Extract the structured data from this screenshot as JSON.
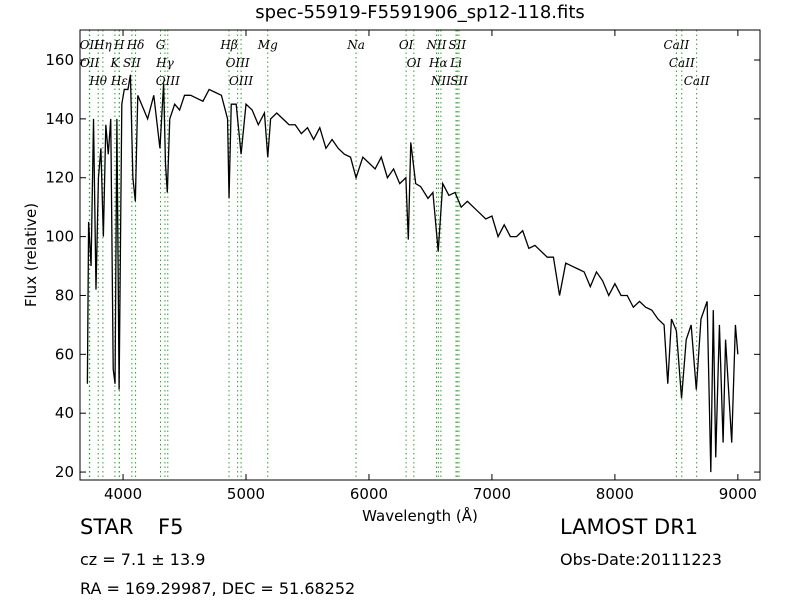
{
  "chart_data": {
    "type": "line",
    "title": "spec-55919-F5591906_sp12-118.fits",
    "x_label": "Wavelength (Å)",
    "y_label": "Flux (relative)",
    "xlim": [
      3650,
      9180
    ],
    "ylim": [
      17.3,
      170.2
    ],
    "xticks": [
      4000,
      5000,
      6000,
      7000,
      8000,
      9000
    ],
    "yticks": [
      20,
      40,
      60,
      80,
      100,
      120,
      140,
      160
    ],
    "line_color": "#000000",
    "marker_color": "#2ca02c",
    "x": [
      3710,
      3720,
      3740,
      3760,
      3780,
      3800,
      3820,
      3840,
      3860,
      3880,
      3900,
      3920,
      3935,
      3950,
      3968,
      3990,
      4010,
      4040,
      4060,
      4080,
      4100,
      4120,
      4150,
      4200,
      4250,
      4300,
      4330,
      4345,
      4360,
      4380,
      4420,
      4460,
      4500,
      4550,
      4600,
      4650,
      4700,
      4750,
      4800,
      4850,
      4862,
      4880,
      4920,
      4960,
      5000,
      5050,
      5100,
      5150,
      5177,
      5200,
      5250,
      5300,
      5350,
      5400,
      5450,
      5500,
      5550,
      5600,
      5650,
      5700,
      5750,
      5800,
      5850,
      5895,
      5950,
      6000,
      6050,
      6100,
      6150,
      6200,
      6250,
      6300,
      6320,
      6340,
      6380,
      6420,
      6480,
      6520,
      6563,
      6600,
      6650,
      6700,
      6750,
      6800,
      6850,
      6900,
      6950,
      7000,
      7050,
      7100,
      7150,
      7200,
      7250,
      7300,
      7350,
      7400,
      7450,
      7500,
      7550,
      7600,
      7650,
      7700,
      7750,
      7800,
      7850,
      7900,
      7950,
      8000,
      8050,
      8100,
      8150,
      8200,
      8250,
      8300,
      8350,
      8400,
      8430,
      8460,
      8500,
      8542,
      8580,
      8620,
      8662,
      8700,
      8750,
      8780,
      8800,
      8820,
      8850,
      8880,
      8900,
      8950,
      8980,
      9000
    ],
    "values": [
      50,
      105,
      90,
      140,
      82,
      120,
      130,
      100,
      138,
      128,
      140,
      55,
      50,
      140,
      48,
      145,
      150,
      150,
      155,
      120,
      112,
      148,
      145,
      140,
      148,
      130,
      152,
      125,
      115,
      140,
      145,
      143,
      148,
      148,
      147,
      146,
      150,
      149,
      148,
      140,
      113,
      145,
      145,
      128,
      145,
      143,
      138,
      142,
      127,
      140,
      142,
      140,
      138,
      138,
      135,
      137,
      133,
      137,
      130,
      133,
      130,
      128,
      127,
      120,
      127,
      125,
      123,
      127,
      120,
      123,
      118,
      120,
      99,
      132,
      118,
      117,
      113,
      115,
      95,
      118,
      114,
      115,
      110,
      112,
      110,
      108,
      106,
      107,
      100,
      104,
      100,
      100,
      102,
      96,
      97,
      95,
      93,
      93,
      80,
      91,
      90,
      89,
      88,
      83,
      88,
      85,
      80,
      84,
      80,
      80,
      76,
      78,
      76,
      75,
      72,
      70,
      50,
      72,
      68,
      45,
      65,
      70,
      48,
      72,
      78,
      20,
      75,
      25,
      70,
      30,
      65,
      30,
      70,
      60
    ],
    "spectral_lines": [
      {
        "label": "OII",
        "wavelength": 3726
      },
      {
        "label": "OII",
        "wavelength": 3729
      },
      {
        "label": "Hθ",
        "wavelength": 3798
      },
      {
        "label": "Hη",
        "wavelength": 3836
      },
      {
        "label": "K",
        "wavelength": 3934
      },
      {
        "label": "H",
        "wavelength": 3969
      },
      {
        "label": "Hε",
        "wavelength": 3970
      },
      {
        "label": "SII",
        "wavelength": 4072
      },
      {
        "label": "Hδ",
        "wavelength": 4102
      },
      {
        "label": "G",
        "wavelength": 4305
      },
      {
        "label": "Hγ",
        "wavelength": 4341
      },
      {
        "label": "OIII",
        "wavelength": 4364
      },
      {
        "label": "Hβ",
        "wavelength": 4862
      },
      {
        "label": "OIII",
        "wavelength": 4932
      },
      {
        "label": "OIII",
        "wavelength": 4960
      },
      {
        "label": "Mg",
        "wavelength": 5177
      },
      {
        "label": "Na",
        "wavelength": 5895
      },
      {
        "label": "OI",
        "wavelength": 6302
      },
      {
        "label": "OI",
        "wavelength": 6365
      },
      {
        "label": "NII",
        "wavelength": 6549
      },
      {
        "label": "Hα",
        "wavelength": 6564
      },
      {
        "label": "NII",
        "wavelength": 6585
      },
      {
        "label": "Li",
        "wavelength": 6708
      },
      {
        "label": "SII",
        "wavelength": 6718
      },
      {
        "label": "SII",
        "wavelength": 6732
      },
      {
        "label": "CaII",
        "wavelength": 8500
      },
      {
        "label": "CaII",
        "wavelength": 8544
      },
      {
        "label": "CaII",
        "wavelength": 8665
      }
    ],
    "class_label": "STAR",
    "subclass": "F5",
    "cz_text": "cz = 7.1 ± 13.9",
    "coords_text": "RA = 169.29987, DEC = 51.68252",
    "survey": "LAMOST DR1",
    "obs_date": "Obs-Date:20111223"
  }
}
